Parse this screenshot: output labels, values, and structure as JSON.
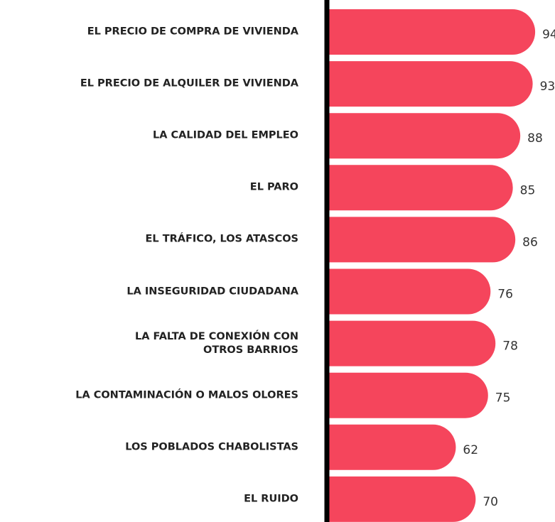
{
  "chart_data": {
    "type": "barh",
    "categories": [
      "EL PRECIO DE COMPRA DE VIVIENDA",
      "EL PRECIO DE ALQUILER DE VIVIENDA",
      "LA CALIDAD DEL EMPLEO",
      "EL PARO",
      "EL TRÁFICO, LOS ATASCOS",
      "LA INSEGURIDAD CIUDADANA",
      "LA FALTA DE CONEXIÓN CON\nOTROS BARRIOS",
      "LA CONTAMINACIÓN O MALOS OLORES",
      "LOS POBLADOS CHABOLISTAS",
      "EL RUIDO"
    ],
    "values": [
      94,
      93,
      88,
      85,
      86,
      76,
      78,
      75,
      62,
      70
    ],
    "color": "#f5455c",
    "xlim": [
      10,
      102
    ]
  }
}
